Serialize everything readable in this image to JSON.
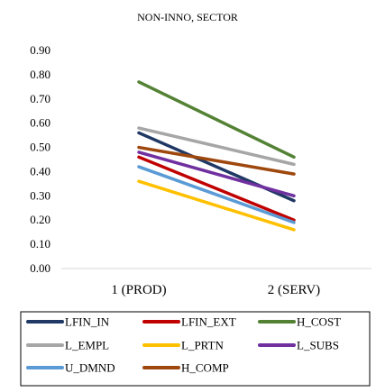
{
  "chart_data": {
    "type": "line",
    "title": "NON-INNO, SECTOR",
    "xlabel": "",
    "ylabel": "",
    "categories": [
      "1 (PROD)",
      "2 (SERV)"
    ],
    "ylim": [
      0,
      0.9
    ],
    "yticks": [
      "0.00",
      "0.10",
      "0.20",
      "0.30",
      "0.40",
      "0.50",
      "0.60",
      "0.70",
      "0.80",
      "0.90"
    ],
    "grid": false,
    "legend_position": "bottom",
    "series": [
      {
        "name": "LFIN_IN",
        "values": [
          0.56,
          0.28
        ],
        "color": "#1f3864"
      },
      {
        "name": "LFIN_EXT",
        "values": [
          0.46,
          0.2
        ],
        "color": "#c00000"
      },
      {
        "name": "H_COST",
        "values": [
          0.77,
          0.46
        ],
        "color": "#548235"
      },
      {
        "name": "L_EMPL",
        "values": [
          0.58,
          0.43
        ],
        "color": "#a6a6a6"
      },
      {
        "name": "L_PRTN",
        "values": [
          0.36,
          0.16
        ],
        "color": "#ffc000"
      },
      {
        "name": "L_SUBS",
        "values": [
          0.48,
          0.3
        ],
        "color": "#7030a0"
      },
      {
        "name": "U_DMND",
        "values": [
          0.42,
          0.19
        ],
        "color": "#5b9bd5"
      },
      {
        "name": "H_COMP",
        "values": [
          0.5,
          0.39
        ],
        "color": "#9e480e"
      }
    ]
  }
}
